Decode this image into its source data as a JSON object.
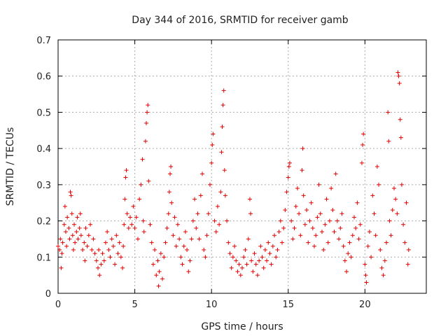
{
  "chart_data": {
    "type": "scatter",
    "title": "Day 344 of 2016, SRMTID for receiver gamb",
    "xlabel": "GPS time / hours",
    "ylabel": "SRMTID / TECUs",
    "xlim": [
      0,
      24
    ],
    "ylim": [
      0,
      0.7
    ],
    "x_ticks": [
      0,
      5,
      10,
      15,
      20
    ],
    "x_tick_labels": [
      "0",
      "5",
      "10",
      "15",
      "20"
    ],
    "y_ticks": [
      0,
      0.1,
      0.2,
      0.3,
      0.4,
      0.5,
      0.6,
      0.7
    ],
    "y_tick_labels": [
      "0",
      "0.1",
      "0.2",
      "0.3",
      "0.4",
      "0.5",
      "0.6",
      "0.7"
    ],
    "grid": true,
    "marker": "+",
    "color": "#e00000",
    "series": [
      {
        "name": "SRMTID",
        "points": [
          [
            0.0,
            0.13
          ],
          [
            0.1,
            0.12
          ],
          [
            0.15,
            0.15
          ],
          [
            0.2,
            0.07
          ],
          [
            0.25,
            0.11
          ],
          [
            0.3,
            0.14
          ],
          [
            0.4,
            0.19
          ],
          [
            0.45,
            0.24
          ],
          [
            0.5,
            0.17
          ],
          [
            0.55,
            0.13
          ],
          [
            0.6,
            0.21
          ],
          [
            0.7,
            0.18
          ],
          [
            0.75,
            0.15
          ],
          [
            0.8,
            0.28
          ],
          [
            0.85,
            0.27
          ],
          [
            0.9,
            0.22
          ],
          [
            0.95,
            0.16
          ],
          [
            1.0,
            0.12
          ],
          [
            1.05,
            0.19
          ],
          [
            1.1,
            0.14
          ],
          [
            1.2,
            0.17
          ],
          [
            1.25,
            0.21
          ],
          [
            1.3,
            0.15
          ],
          [
            1.4,
            0.18
          ],
          [
            1.45,
            0.22
          ],
          [
            1.5,
            0.16
          ],
          [
            1.6,
            0.12
          ],
          [
            1.7,
            0.14
          ],
          [
            1.75,
            0.09
          ],
          [
            1.8,
            0.18
          ],
          [
            1.9,
            0.13
          ],
          [
            2.0,
            0.16
          ],
          [
            2.1,
            0.19
          ],
          [
            2.2,
            0.12
          ],
          [
            2.3,
            0.15
          ],
          [
            2.4,
            0.11
          ],
          [
            2.5,
            0.09
          ],
          [
            2.6,
            0.07
          ],
          [
            2.65,
            0.12
          ],
          [
            2.7,
            0.05
          ],
          [
            2.8,
            0.08
          ],
          [
            2.9,
            0.11
          ],
          [
            3.0,
            0.09
          ],
          [
            3.1,
            0.14
          ],
          [
            3.2,
            0.17
          ],
          [
            3.3,
            0.12
          ],
          [
            3.4,
            0.1
          ],
          [
            3.5,
            0.15
          ],
          [
            3.6,
            0.13
          ],
          [
            3.7,
            0.08
          ],
          [
            3.8,
            0.16
          ],
          [
            3.9,
            0.11
          ],
          [
            4.0,
            0.14
          ],
          [
            4.1,
            0.1
          ],
          [
            4.2,
            0.07
          ],
          [
            4.25,
            0.13
          ],
          [
            4.3,
            0.19
          ],
          [
            4.35,
            0.26
          ],
          [
            4.4,
            0.32
          ],
          [
            4.45,
            0.34
          ],
          [
            4.5,
            0.22
          ],
          [
            4.6,
            0.18
          ],
          [
            4.7,
            0.21
          ],
          [
            4.8,
            0.19
          ],
          [
            4.9,
            0.24
          ],
          [
            5.0,
            0.18
          ],
          [
            5.1,
            0.21
          ],
          [
            5.2,
            0.15
          ],
          [
            5.3,
            0.26
          ],
          [
            5.4,
            0.3
          ],
          [
            5.5,
            0.37
          ],
          [
            5.55,
            0.2
          ],
          [
            5.6,
            0.17
          ],
          [
            5.7,
            0.42
          ],
          [
            5.75,
            0.47
          ],
          [
            5.8,
            0.5
          ],
          [
            5.85,
            0.52
          ],
          [
            5.9,
            0.31
          ],
          [
            6.0,
            0.19
          ],
          [
            6.1,
            0.14
          ],
          [
            6.2,
            0.08
          ],
          [
            6.3,
            0.12
          ],
          [
            6.4,
            0.05
          ],
          [
            6.5,
            0.09
          ],
          [
            6.55,
            0.02
          ],
          [
            6.6,
            0.06
          ],
          [
            6.7,
            0.11
          ],
          [
            6.8,
            0.04
          ],
          [
            6.9,
            0.1
          ],
          [
            7.0,
            0.14
          ],
          [
            7.1,
            0.18
          ],
          [
            7.2,
            0.22
          ],
          [
            7.25,
            0.28
          ],
          [
            7.3,
            0.33
          ],
          [
            7.35,
            0.35
          ],
          [
            7.4,
            0.25
          ],
          [
            7.5,
            0.16
          ],
          [
            7.6,
            0.21
          ],
          [
            7.7,
            0.13
          ],
          [
            7.8,
            0.19
          ],
          [
            7.9,
            0.15
          ],
          [
            8.0,
            0.1
          ],
          [
            8.1,
            0.08
          ],
          [
            8.2,
            0.13
          ],
          [
            8.3,
            0.17
          ],
          [
            8.4,
            0.12
          ],
          [
            8.5,
            0.06
          ],
          [
            8.6,
            0.09
          ],
          [
            8.7,
            0.15
          ],
          [
            8.8,
            0.2
          ],
          [
            8.9,
            0.26
          ],
          [
            9.0,
            0.18
          ],
          [
            9.1,
            0.22
          ],
          [
            9.2,
            0.15
          ],
          [
            9.3,
            0.27
          ],
          [
            9.4,
            0.33
          ],
          [
            9.5,
            0.12
          ],
          [
            9.6,
            0.1
          ],
          [
            9.7,
            0.16
          ],
          [
            9.8,
            0.22
          ],
          [
            9.9,
            0.3
          ],
          [
            10.0,
            0.36
          ],
          [
            10.05,
            0.41
          ],
          [
            10.1,
            0.44
          ],
          [
            10.2,
            0.2
          ],
          [
            10.3,
            0.17
          ],
          [
            10.4,
            0.24
          ],
          [
            10.5,
            0.19
          ],
          [
            10.6,
            0.28
          ],
          [
            10.65,
            0.39
          ],
          [
            10.7,
            0.46
          ],
          [
            10.75,
            0.52
          ],
          [
            10.8,
            0.56
          ],
          [
            10.85,
            0.34
          ],
          [
            10.9,
            0.27
          ],
          [
            11.0,
            0.2
          ],
          [
            11.1,
            0.14
          ],
          [
            11.2,
            0.11
          ],
          [
            11.3,
            0.07
          ],
          [
            11.4,
            0.1
          ],
          [
            11.5,
            0.13
          ],
          [
            11.6,
            0.09
          ],
          [
            11.7,
            0.06
          ],
          [
            11.8,
            0.08
          ],
          [
            11.9,
            0.05
          ],
          [
            12.0,
            0.07
          ],
          [
            12.1,
            0.1
          ],
          [
            12.2,
            0.12
          ],
          [
            12.3,
            0.08
          ],
          [
            12.4,
            0.15
          ],
          [
            12.5,
            0.26
          ],
          [
            12.55,
            0.22
          ],
          [
            12.6,
            0.09
          ],
          [
            12.7,
            0.06
          ],
          [
            12.8,
            0.11
          ],
          [
            12.9,
            0.08
          ],
          [
            13.0,
            0.05
          ],
          [
            13.1,
            0.09
          ],
          [
            13.2,
            0.13
          ],
          [
            13.3,
            0.1
          ],
          [
            13.4,
            0.07
          ],
          [
            13.5,
            0.12
          ],
          [
            13.6,
            0.09
          ],
          [
            13.7,
            0.14
          ],
          [
            13.8,
            0.11
          ],
          [
            13.9,
            0.08
          ],
          [
            14.0,
            0.13
          ],
          [
            14.1,
            0.16
          ],
          [
            14.2,
            0.1
          ],
          [
            14.3,
            0.12
          ],
          [
            14.4,
            0.17
          ],
          [
            14.5,
            0.2
          ],
          [
            14.6,
            0.14
          ],
          [
            14.7,
            0.18
          ],
          [
            14.8,
            0.23
          ],
          [
            14.9,
            0.28
          ],
          [
            15.0,
            0.32
          ],
          [
            15.05,
            0.35
          ],
          [
            15.1,
            0.36
          ],
          [
            15.2,
            0.2
          ],
          [
            15.3,
            0.15
          ],
          [
            15.4,
            0.18
          ],
          [
            15.5,
            0.24
          ],
          [
            15.6,
            0.29
          ],
          [
            15.7,
            0.22
          ],
          [
            15.8,
            0.16
          ],
          [
            15.9,
            0.34
          ],
          [
            15.95,
            0.4
          ],
          [
            16.0,
            0.27
          ],
          [
            16.1,
            0.19
          ],
          [
            16.2,
            0.23
          ],
          [
            16.3,
            0.14
          ],
          [
            16.4,
            0.2
          ],
          [
            16.5,
            0.25
          ],
          [
            16.6,
            0.18
          ],
          [
            16.7,
            0.13
          ],
          [
            16.8,
            0.16
          ],
          [
            16.9,
            0.21
          ],
          [
            17.0,
            0.3
          ],
          [
            17.1,
            0.22
          ],
          [
            17.2,
            0.17
          ],
          [
            17.3,
            0.12
          ],
          [
            17.4,
            0.19
          ],
          [
            17.5,
            0.26
          ],
          [
            17.6,
            0.14
          ],
          [
            17.7,
            0.2
          ],
          [
            17.8,
            0.29
          ],
          [
            17.9,
            0.23
          ],
          [
            18.0,
            0.17
          ],
          [
            18.1,
            0.33
          ],
          [
            18.2,
            0.2
          ],
          [
            18.3,
            0.15
          ],
          [
            18.4,
            0.18
          ],
          [
            18.5,
            0.22
          ],
          [
            18.6,
            0.13
          ],
          [
            18.7,
            0.09
          ],
          [
            18.8,
            0.06
          ],
          [
            18.9,
            0.11
          ],
          [
            19.0,
            0.14
          ],
          [
            19.1,
            0.1
          ],
          [
            19.2,
            0.16
          ],
          [
            19.3,
            0.21
          ],
          [
            19.4,
            0.18
          ],
          [
            19.5,
            0.25
          ],
          [
            19.6,
            0.15
          ],
          [
            19.7,
            0.19
          ],
          [
            19.8,
            0.36
          ],
          [
            19.85,
            0.41
          ],
          [
            19.9,
            0.44
          ],
          [
            20.0,
            0.08
          ],
          [
            20.05,
            0.05
          ],
          [
            20.1,
            0.03
          ],
          [
            20.2,
            0.13
          ],
          [
            20.3,
            0.17
          ],
          [
            20.4,
            0.1
          ],
          [
            20.5,
            0.27
          ],
          [
            20.6,
            0.22
          ],
          [
            20.7,
            0.16
          ],
          [
            20.8,
            0.35
          ],
          [
            20.9,
            0.3
          ],
          [
            21.0,
            0.12
          ],
          [
            21.1,
            0.07
          ],
          [
            21.2,
            0.05
          ],
          [
            21.3,
            0.09
          ],
          [
            21.4,
            0.14
          ],
          [
            21.5,
            0.5
          ],
          [
            21.55,
            0.42
          ],
          [
            21.6,
            0.2
          ],
          [
            21.7,
            0.16
          ],
          [
            21.8,
            0.23
          ],
          [
            21.9,
            0.29
          ],
          [
            22.0,
            0.26
          ],
          [
            22.1,
            0.22
          ],
          [
            22.15,
            0.61
          ],
          [
            22.2,
            0.6
          ],
          [
            22.25,
            0.58
          ],
          [
            22.3,
            0.48
          ],
          [
            22.35,
            0.43
          ],
          [
            22.4,
            0.3
          ],
          [
            22.5,
            0.19
          ],
          [
            22.6,
            0.14
          ],
          [
            22.7,
            0.25
          ],
          [
            22.8,
            0.08
          ],
          [
            22.85,
            0.12
          ]
        ]
      }
    ]
  }
}
